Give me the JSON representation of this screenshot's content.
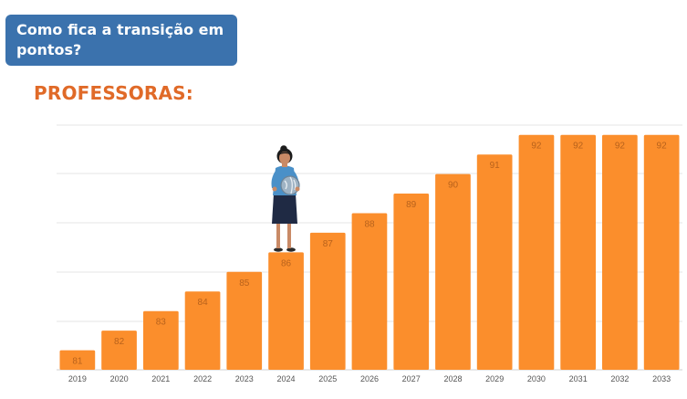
{
  "header": {
    "title": "Como fica a transição em pontos?"
  },
  "section": {
    "title": "PROFESSORAS:"
  },
  "colors": {
    "bar": "#fb8e2c",
    "bar_label": "#b8621c",
    "header_bg": "#3b72ad",
    "title": "#e06a28"
  },
  "illustration": {
    "icon": "woman-holding-globe-icon"
  },
  "chart_data": {
    "type": "bar",
    "categories": [
      "2019",
      "2020",
      "2021",
      "2022",
      "2023",
      "2024",
      "2025",
      "2026",
      "2027",
      "2028",
      "2029",
      "2030",
      "2031",
      "2032",
      "2033"
    ],
    "values": [
      81,
      82,
      83,
      84,
      85,
      86,
      87,
      88,
      89,
      90,
      91,
      92,
      92,
      92,
      92
    ],
    "title": "PROFESSORAS:",
    "xlabel": "",
    "ylabel": "",
    "ylim": [
      80,
      92.5
    ],
    "grid": true,
    "data_labels": true
  }
}
